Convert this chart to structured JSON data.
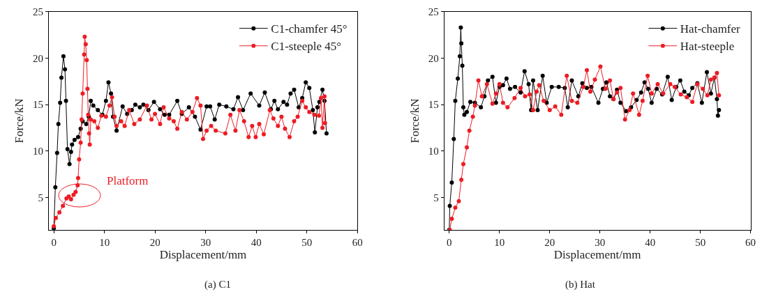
{
  "chart_data": [
    {
      "type": "line",
      "title": "(a) C1",
      "xlabel": "Displacement/mm",
      "ylabel": "Force/kN",
      "xlim": [
        -1,
        60
      ],
      "xticks": [
        0,
        10,
        20,
        30,
        40,
        50,
        60
      ],
      "ylim": [
        1.5,
        25
      ],
      "yticks": [
        5,
        10,
        15,
        20,
        25
      ],
      "legend": "top right",
      "marker": "circle",
      "line_style": "solid",
      "annotations": [
        "Platform"
      ],
      "series": [
        {
          "name": "C1-chamfer 45°",
          "color": "#000000",
          "x": [
            0,
            0.3,
            0.65,
            0.9,
            1.25,
            1.5,
            1.9,
            2.2,
            2.4,
            2.7,
            3.1,
            3.4,
            3.6,
            4.1,
            4.8,
            5.3,
            5.7,
            6.4,
            6.9,
            7.3,
            7.8,
            8.7,
            9.6,
            10.3,
            10.8,
            11.3,
            11.7,
            12.4,
            13.6,
            14.5,
            15.4,
            16.1,
            17.0,
            17.7,
            18.7,
            19.8,
            21.0,
            21.9,
            22.8,
            24.4,
            25.3,
            26.7,
            27.9,
            29.0,
            30.2,
            30.9,
            31.8,
            32.7,
            34.1,
            35.5,
            36.4,
            37.4,
            38.9,
            40.6,
            41.7,
            42.9,
            43.6,
            44.3,
            45.4,
            46.1,
            46.8,
            47.5,
            48.4,
            49.1,
            49.8,
            50.5,
            51.2,
            51.6,
            52.1,
            52.5,
            53.1,
            53.5,
            53.9
          ],
          "values": [
            1.7,
            6.1,
            9.8,
            12.9,
            15.2,
            17.9,
            20.2,
            18.8,
            15.4,
            10.2,
            8.6,
            9.9,
            10.7,
            11.2,
            11.5,
            12.4,
            13.2,
            12.9,
            13.7,
            15.4,
            14.9,
            14.4,
            13.9,
            15.4,
            17.4,
            16.2,
            13.7,
            12.2,
            14.8,
            14.0,
            14.4,
            15.0,
            14.7,
            15.0,
            14.4,
            15.3,
            14.5,
            13.9,
            13.9,
            15.4,
            14.0,
            14.7,
            13.7,
            12.3,
            14.8,
            14.8,
            13.4,
            15.0,
            14.8,
            14.5,
            15.8,
            14.4,
            16.2,
            14.9,
            16.3,
            14.5,
            15.4,
            14.5,
            15.3,
            15.0,
            16.2,
            16.6,
            14.7,
            15.7,
            17.4,
            16.8,
            14.4,
            12.0,
            14.7,
            15.3,
            16.6,
            15.4,
            11.9
          ]
        },
        {
          "name": "C1-steeple 45°",
          "color": "#ed1c24",
          "x": [
            0,
            0.4,
            1.1,
            1.8,
            2.5,
            2.95,
            3.4,
            3.9,
            4.3,
            4.7,
            4.8,
            5.0,
            5.3,
            5.5,
            5.7,
            6.0,
            6.1,
            6.3,
            6.5,
            6.65,
            6.8,
            6.97,
            7.1,
            7.3,
            8.0,
            8.7,
            9.4,
            10.3,
            11.0,
            11.5,
            12.0,
            12.4,
            13.3,
            14.0,
            14.9,
            15.9,
            17.0,
            18.4,
            19.3,
            20.0,
            21.0,
            21.7,
            22.8,
            23.7,
            24.4,
            25.3,
            26.3,
            27.4,
            28.3,
            29.0,
            29.5,
            30.2,
            31.1,
            32.0,
            33.9,
            34.9,
            35.9,
            36.7,
            37.6,
            38.5,
            39.2,
            39.9,
            40.6,
            41.5,
            42.7,
            43.4,
            44.3,
            45.0,
            45.7,
            46.6,
            47.5,
            48.2,
            49.1,
            49.8,
            50.5,
            51.5,
            52.4,
            52.8,
            53.1,
            53.5,
            53.6
          ],
          "values": [
            1.9,
            2.8,
            3.4,
            4.1,
            4.9,
            5.1,
            4.8,
            5.3,
            5.6,
            6.3,
            7.1,
            9.1,
            10.9,
            13.4,
            16.2,
            20.4,
            22.3,
            21.5,
            19.8,
            16.7,
            13.9,
            11.9,
            10.7,
            13.4,
            13.2,
            12.5,
            13.8,
            13.7,
            14.9,
            15.8,
            13.7,
            12.7,
            13.2,
            12.7,
            14.4,
            12.9,
            13.4,
            14.9,
            13.4,
            14.0,
            12.9,
            14.7,
            13.5,
            13.2,
            12.4,
            14.2,
            13.4,
            14.2,
            15.7,
            14.9,
            11.3,
            12.2,
            12.7,
            12.2,
            11.9,
            13.9,
            12.2,
            14.4,
            13.2,
            11.5,
            12.7,
            11.5,
            12.9,
            11.8,
            14.4,
            13.5,
            12.7,
            13.7,
            12.4,
            11.5,
            13.2,
            13.7,
            15.4,
            14.7,
            14.2,
            13.9,
            13.8,
            15.7,
            12.5,
            15.9,
            13.0
          ]
        }
      ]
    },
    {
      "type": "line",
      "title": "(b) Hat",
      "xlabel": "Displacement/mm",
      "ylabel": "Force/kN",
      "xlim": [
        -1,
        60
      ],
      "xticks": [
        0,
        10,
        20,
        30,
        40,
        50,
        60
      ],
      "ylim": [
        1.5,
        25
      ],
      "yticks": [
        5,
        10,
        15,
        20,
        25
      ],
      "legend": "top right",
      "marker": "circle",
      "line_style": "solid",
      "series": [
        {
          "name": "Hat-chamfer",
          "color": "#000000",
          "x": [
            0,
            0.1,
            0.5,
            0.9,
            1.2,
            1.7,
            2.1,
            2.3,
            2.4,
            2.6,
            2.8,
            3.0,
            3.5,
            4.2,
            5.1,
            6.3,
            7.0,
            7.7,
            8.6,
            9.3,
            10.0,
            10.7,
            11.4,
            12.1,
            13.1,
            14.2,
            15.0,
            15.8,
            16.3,
            16.7,
            17.6,
            18.6,
            19.4,
            20.4,
            21.8,
            23.0,
            23.6,
            24.4,
            25.7,
            26.5,
            27.4,
            28.3,
            29.7,
            30.6,
            31.3,
            32.0,
            32.7,
            33.4,
            34.1,
            35.2,
            36.2,
            37.3,
            38.2,
            38.9,
            39.6,
            40.3,
            41.3,
            42.4,
            43.5,
            44.3,
            45.2,
            46.0,
            46.8,
            47.7,
            48.4,
            49.4,
            50.3,
            51.3,
            52.1,
            52.8,
            53.3,
            53.5,
            53.7
          ],
          "values": [
            1.5,
            4.1,
            6.6,
            11.3,
            15.4,
            17.8,
            20.2,
            23.3,
            21.6,
            19.2,
            14.7,
            13.9,
            14.2,
            15.3,
            15.2,
            14.7,
            15.9,
            17.6,
            18.0,
            15.2,
            16.9,
            17.1,
            17.8,
            16.7,
            16.9,
            16.3,
            18.6,
            17.2,
            14.4,
            17.6,
            14.4,
            18.1,
            15.2,
            16.9,
            16.9,
            16.8,
            14.7,
            17.6,
            15.9,
            17.3,
            16.8,
            16.9,
            15.2,
            16.7,
            17.4,
            15.9,
            15.6,
            16.6,
            15.2,
            14.3,
            14.7,
            15.5,
            16.3,
            17.4,
            16.7,
            15.2,
            16.7,
            16.1,
            18.0,
            15.5,
            16.9,
            17.6,
            16.4,
            16.0,
            16.8,
            17.3,
            15.2,
            18.5,
            16.2,
            17.9,
            15.6,
            13.8,
            14.4
          ]
        },
        {
          "name": "Hat-steeple",
          "color": "#ed1c24",
          "x": [
            0.1,
            0.5,
            1.2,
            1.9,
            2.4,
            2.8,
            3.5,
            4.0,
            4.7,
            5.1,
            5.8,
            6.5,
            7.5,
            8.6,
            9.3,
            10.0,
            10.7,
            11.6,
            13.0,
            14.2,
            15.1,
            16.0,
            16.7,
            17.4,
            17.9,
            18.8,
            20.0,
            21.1,
            22.3,
            23.4,
            24.4,
            25.5,
            26.7,
            27.4,
            28.1,
            29.0,
            30.1,
            31.1,
            32.0,
            32.7,
            33.4,
            34.1,
            35.0,
            35.9,
            36.6,
            37.8,
            38.5,
            39.5,
            40.3,
            41.5,
            42.6,
            44.0,
            44.9,
            46.1,
            47.3,
            48.4,
            49.4,
            50.5,
            51.4,
            52.1,
            52.8,
            53.3,
            53.7
          ],
          "values": [
            1.5,
            2.7,
            3.9,
            4.6,
            6.9,
            8.6,
            10.4,
            12.2,
            13.7,
            14.9,
            17.6,
            15.9,
            17.2,
            15.1,
            16.2,
            17.2,
            15.2,
            14.7,
            15.7,
            16.8,
            15.9,
            16.1,
            14.4,
            16.4,
            17.1,
            15.4,
            14.4,
            14.8,
            13.9,
            18.1,
            15.4,
            15.2,
            16.9,
            18.7,
            16.4,
            17.7,
            19.1,
            16.7,
            17.6,
            15.6,
            16.3,
            16.8,
            13.4,
            14.4,
            16.2,
            13.9,
            15.4,
            18.1,
            16.2,
            17.2,
            16.2,
            17.2,
            16.9,
            16.1,
            15.8,
            15.3,
            17.2,
            16.7,
            16.0,
            17.7,
            17.9,
            18.4,
            16.0
          ]
        }
      ]
    }
  ]
}
